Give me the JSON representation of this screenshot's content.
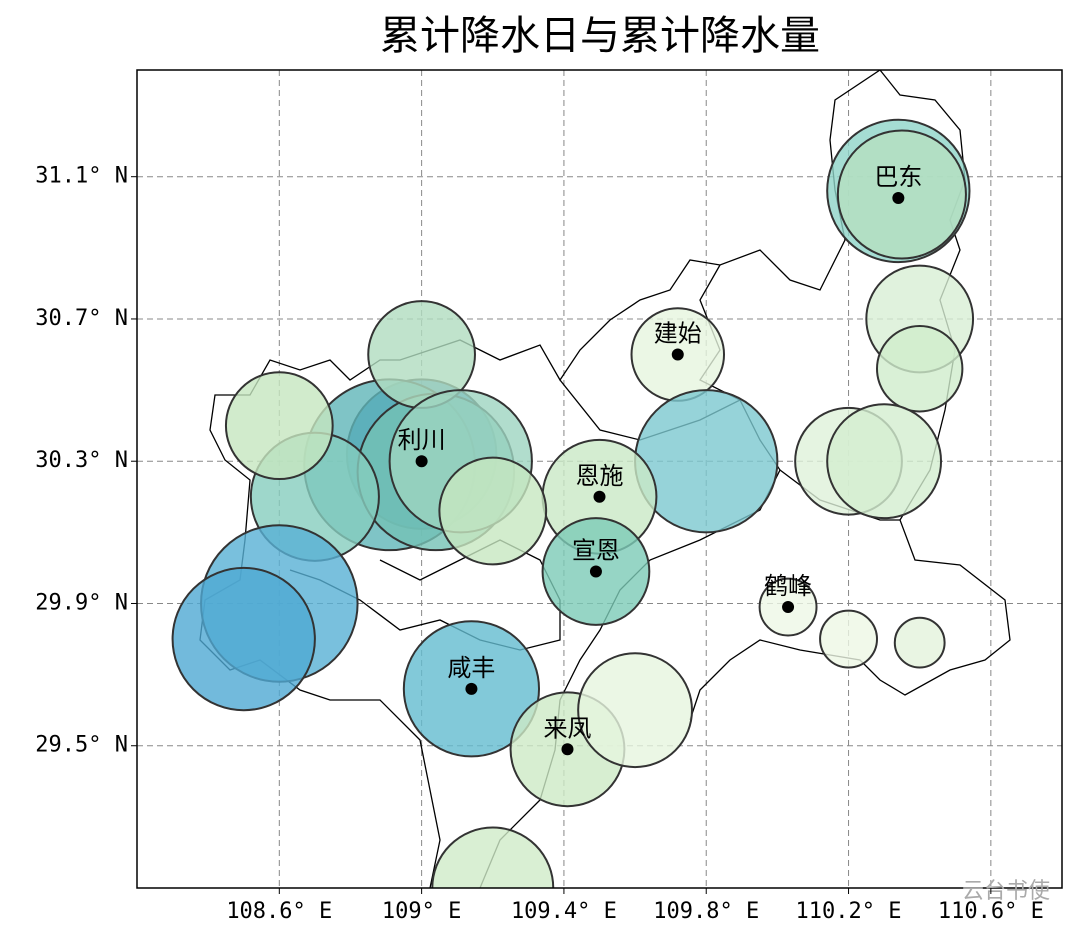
{
  "chart_data": {
    "type": "bubble",
    "title": "累计降水日与累计降水量",
    "xlim": [
      108.2,
      110.8
    ],
    "ylim": [
      29.1,
      31.4
    ],
    "xticks": [
      {
        "value": 108.6,
        "label": "108.6° E"
      },
      {
        "value": 109.0,
        "label": "109° E"
      },
      {
        "value": 109.4,
        "label": "109.4° E"
      },
      {
        "value": 109.8,
        "label": "109.8° E"
      },
      {
        "value": 110.2,
        "label": "110.2° E"
      },
      {
        "value": 110.6,
        "label": "110.6° E"
      }
    ],
    "yticks": [
      {
        "value": 29.5,
        "label": "29.5° N"
      },
      {
        "value": 29.9,
        "label": "29.9° N"
      },
      {
        "value": 30.3,
        "label": "30.3° N"
      },
      {
        "value": 30.7,
        "label": "30.7° N"
      },
      {
        "value": 31.1,
        "label": "31.1° N"
      }
    ],
    "grid": true,
    "x": [
      110.34,
      110.35,
      110.4,
      110.4,
      110.2,
      110.3,
      109.72,
      109.8,
      109.5,
      109.49,
      110.03,
      110.2,
      110.4,
      109.0,
      108.91,
      109.04,
      108.7,
      108.6,
      109.0,
      109.11,
      109.2,
      108.6,
      108.5,
      109.14,
      109.41,
      109.6,
      109.2
    ],
    "y": [
      31.06,
      31.05,
      30.7,
      30.56,
      30.3,
      30.3,
      30.6,
      30.3,
      30.2,
      29.99,
      29.89,
      29.8,
      29.79,
      30.32,
      30.29,
      30.27,
      30.2,
      30.4,
      30.6,
      30.3,
      30.16,
      29.9,
      29.8,
      29.66,
      29.49,
      29.6,
      29.1
    ],
    "sizes": [
      0.2,
      0.18,
      0.15,
      0.12,
      0.15,
      0.16,
      0.13,
      0.2,
      0.16,
      0.15,
      0.08,
      0.08,
      0.07,
      0.21,
      0.24,
      0.22,
      0.18,
      0.15,
      0.15,
      0.2,
      0.15,
      0.22,
      0.2,
      0.19,
      0.16,
      0.16,
      0.17
    ],
    "colors": [
      "#8fd4c8",
      "#b5e0c0",
      "#d8efd5",
      "#cfeccc",
      "#dff1da",
      "#d3edcf",
      "#e6f5de",
      "#7cc8d0",
      "#c9e8c5",
      "#7ccbb6",
      "#eef8e6",
      "#edf7e5",
      "#e3f3dc",
      "#2b7fba",
      "#5fb5b8",
      "#74c2b5",
      "#86cdbe",
      "#c6e6bf",
      "#b0dcbf",
      "#9dd5c0",
      "#c7e7c0",
      "#57b0d5",
      "#4fa9d3",
      "#63bccf",
      "#cdeac6",
      "#e6f5de",
      "#d0ebc8"
    ],
    "annotations": [
      {
        "text": "巴东",
        "x": 110.34,
        "y": 31.04
      },
      {
        "text": "建始",
        "x": 109.72,
        "y": 30.6
      },
      {
        "text": "利川",
        "x": 109.0,
        "y": 30.3
      },
      {
        "text": "恩施",
        "x": 109.5,
        "y": 30.2
      },
      {
        "text": "宣恩",
        "x": 109.49,
        "y": 29.99
      },
      {
        "text": "鹤峰",
        "x": 110.03,
        "y": 29.89
      },
      {
        "text": "咸丰",
        "x": 109.14,
        "y": 29.66
      },
      {
        "text": "来凤",
        "x": 109.41,
        "y": 29.49
      }
    ],
    "watermark": "云台书使"
  }
}
